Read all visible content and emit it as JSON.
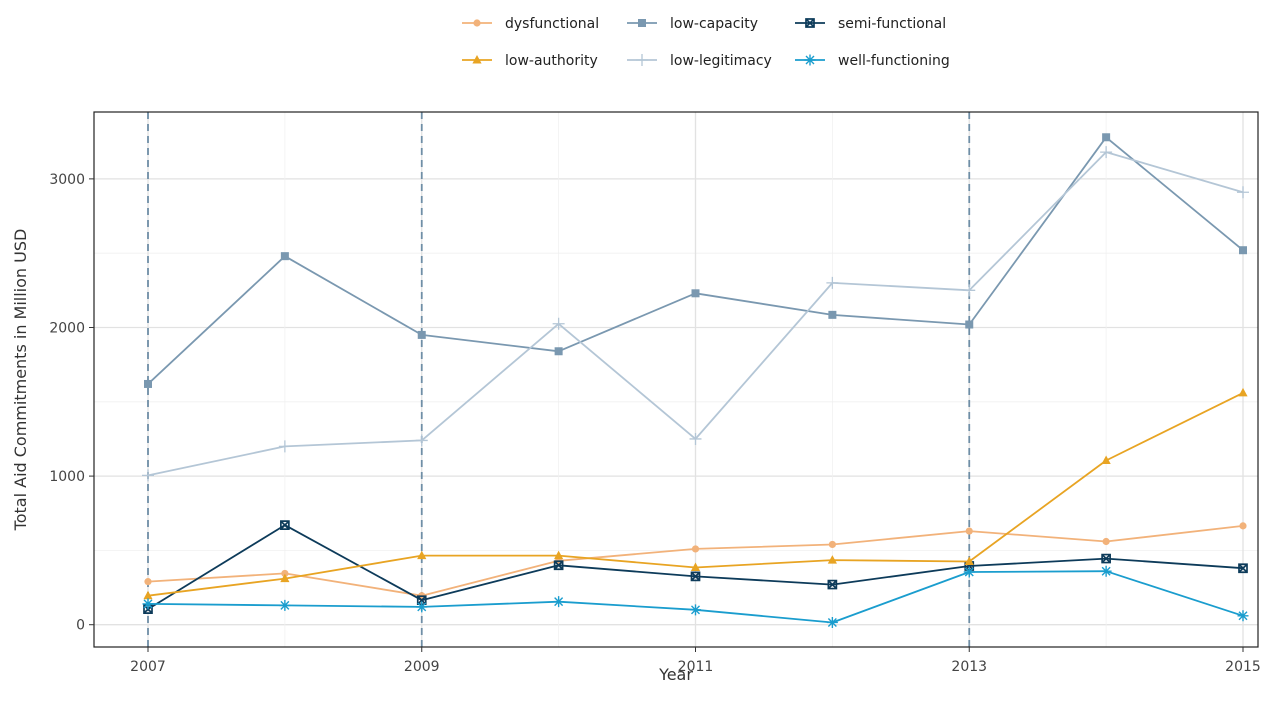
{
  "chart_data": {
    "type": "line",
    "title": "",
    "xlabel": "Year",
    "ylabel": "Total Aid Commitments in Million USD",
    "x": [
      2007,
      2008,
      2009,
      2010,
      2011,
      2012,
      2013,
      2014,
      2015
    ],
    "x_ticks": [
      "2007",
      "2009",
      "2011",
      "2013",
      "2015"
    ],
    "y_ticks": [
      "0",
      "1000",
      "2000",
      "3000"
    ],
    "xlim": [
      2007,
      2015
    ],
    "ylim": [
      -150,
      3450
    ],
    "grid": true,
    "legend_position": "top",
    "vertical_reference_lines": [
      2007,
      2009,
      2013
    ],
    "series": [
      {
        "name": "dysfunctional",
        "color": "#f2b27a",
        "marker": "circle",
        "values": [
          290,
          345,
          195,
          430,
          510,
          540,
          630,
          560,
          665
        ]
      },
      {
        "name": "low-capacity",
        "color": "#7a98b0",
        "marker": "square",
        "values": [
          1620,
          2480,
          1950,
          1840,
          2230,
          2085,
          2020,
          3280,
          2520
        ]
      },
      {
        "name": "semi-functional",
        "color": "#0d3b5a",
        "marker": "square-x",
        "values": [
          105,
          670,
          165,
          400,
          325,
          270,
          395,
          445,
          380
        ]
      },
      {
        "name": "low-authority",
        "color": "#e8a423",
        "marker": "triangle",
        "values": [
          195,
          310,
          465,
          465,
          385,
          435,
          425,
          1105,
          1560
        ]
      },
      {
        "name": "low-legitimacy",
        "color": "#b4c6d6",
        "marker": "plus",
        "values": [
          1005,
          1200,
          1240,
          2025,
          1250,
          2300,
          2250,
          3180,
          2910
        ]
      },
      {
        "name": "well-functioning",
        "color": "#1a9dce",
        "marker": "asterisk",
        "values": [
          140,
          130,
          120,
          155,
          100,
          15,
          355,
          360,
          60
        ]
      }
    ]
  }
}
